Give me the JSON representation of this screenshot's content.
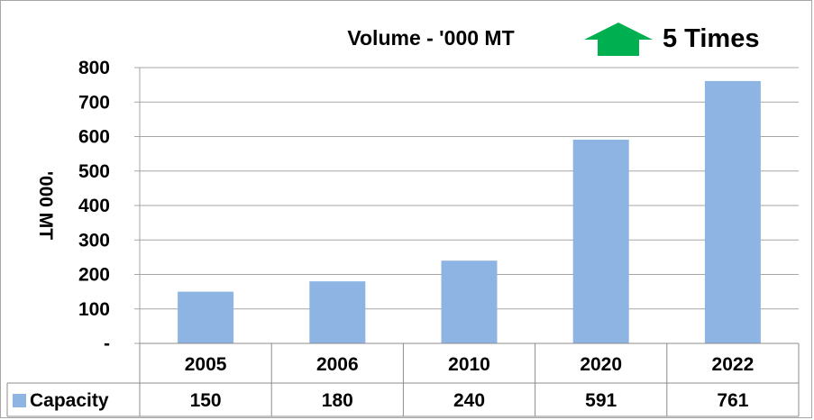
{
  "chart_data": {
    "type": "bar",
    "title": "Volume   - '000 MT",
    "badge_text": "5 Times",
    "badge_icon": "up-arrow-icon",
    "badge_color": "#00b050",
    "ylabel": "'000 MT",
    "ylim": [
      0,
      800
    ],
    "yticks": [
      0,
      100,
      200,
      300,
      400,
      500,
      600,
      700,
      800
    ],
    "ytick_labels": [
      "-",
      "100",
      "200",
      "300",
      "400",
      "500",
      "600",
      "700",
      "800"
    ],
    "categories": [
      "2005",
      "2006",
      "2010",
      "2020",
      "2022"
    ],
    "series": [
      {
        "name": "Capacity",
        "values": [
          150,
          180,
          240,
          591,
          761
        ],
        "color": "#8eb4e3"
      }
    ],
    "table_values": [
      "150",
      "180",
      "240",
      "591",
      "761"
    ],
    "gridlines": true,
    "legend": "data-table"
  }
}
